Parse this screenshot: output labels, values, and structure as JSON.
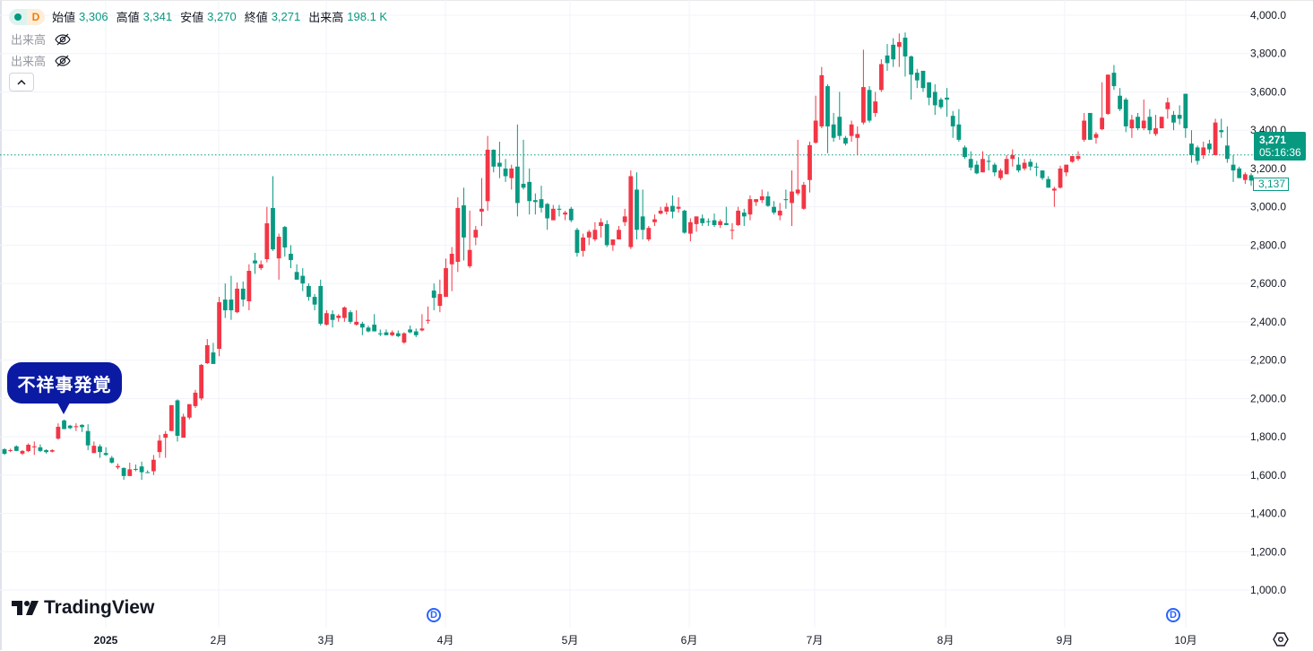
{
  "legend": {
    "interval": "D",
    "open_label": "始値",
    "open": "3,306",
    "high_label": "高値",
    "high": "3,341",
    "low_label": "安値",
    "low": "3,270",
    "close_label": "終値",
    "close": "3,271",
    "volume_label": "出来高",
    "volume": "198.1 K"
  },
  "indicators": [
    {
      "label": "出来高",
      "icon": "eye-off-icon"
    },
    {
      "label": "出来高",
      "icon": "eye-off-icon"
    }
  ],
  "collapse_icon": "chevron-up-icon",
  "annotation": {
    "text": "不祥事発覚"
  },
  "price_line": {
    "price": "3,271",
    "countdown": "05:16:36",
    "current": "3,137"
  },
  "logo": {
    "text": "TradingView"
  },
  "dividend_markers": [
    "D",
    "D"
  ],
  "colors": {
    "up": "#f23645",
    "down": "#089981",
    "grid": "#f0f3fa",
    "callout": "#0a1aa3",
    "marker": "#2962ff"
  },
  "chart_data": {
    "type": "candlestick",
    "title": "",
    "ylim": [
      1000,
      4000
    ],
    "y_ticks": [
      "4,000.0",
      "3,800.0",
      "3,600.0",
      "3,400.0",
      "3,200.0",
      "3,000.0",
      "2,800.0",
      "2,600.0",
      "2,400.0",
      "2,200.0",
      "2,000.0",
      "1,800.0",
      "1,600.0",
      "1,400.0",
      "1,200.0",
      "1,000.0"
    ],
    "x_ticks": [
      "2025",
      "2月",
      "3月",
      "4月",
      "5月",
      "6月",
      "7月",
      "8月",
      "9月",
      "10月"
    ],
    "reference_line": 3271,
    "ohlc_order": [
      "open",
      "high",
      "low",
      "close"
    ],
    "candles": [
      [
        1735,
        1740,
        1705,
        1711
      ],
      [
        1728,
        1738,
        1720,
        1730
      ],
      [
        1750,
        1755,
        1725,
        1726
      ],
      [
        1712,
        1730,
        1705,
        1726
      ],
      [
        1725,
        1765,
        1720,
        1758
      ],
      [
        1745,
        1775,
        1705,
        1750
      ],
      [
        1745,
        1760,
        1720,
        1726
      ],
      [
        1730,
        1735,
        1712,
        1720
      ],
      [
        1722,
        1735,
        1718,
        1730
      ],
      [
        1790,
        1870,
        1785,
        1852
      ],
      [
        1885,
        1890,
        1840,
        1840
      ],
      [
        1858,
        1862,
        1840,
        1845
      ],
      [
        1850,
        1870,
        1830,
        1855
      ],
      [
        1862,
        1865,
        1825,
        1850
      ],
      [
        1830,
        1865,
        1730,
        1755
      ],
      [
        1715,
        1775,
        1715,
        1753
      ],
      [
        1750,
        1760,
        1690,
        1720
      ],
      [
        1715,
        1745,
        1700,
        1705
      ],
      [
        1690,
        1700,
        1660,
        1665
      ],
      [
        1640,
        1660,
        1630,
        1647
      ],
      [
        1637,
        1640,
        1575,
        1595
      ],
      [
        1595,
        1665,
        1595,
        1630
      ],
      [
        1632,
        1655,
        1620,
        1630
      ],
      [
        1645,
        1670,
        1575,
        1615
      ],
      [
        1615,
        1625,
        1612,
        1612
      ],
      [
        1620,
        1705,
        1600,
        1680
      ],
      [
        1720,
        1810,
        1690,
        1780
      ],
      [
        1795,
        1830,
        1690,
        1815
      ],
      [
        1830,
        1965,
        1830,
        1965
      ],
      [
        1990,
        1995,
        1775,
        1805
      ],
      [
        1795,
        1920,
        1795,
        1905
      ],
      [
        1900,
        1970,
        1890,
        1970
      ],
      [
        1960,
        2045,
        1950,
        2030
      ],
      [
        2000,
        2180,
        1990,
        2175
      ],
      [
        2184,
        2310,
        2180,
        2278
      ],
      [
        2240,
        2290,
        2180,
        2180
      ],
      [
        2259,
        2530,
        2220,
        2502
      ],
      [
        2516,
        2600,
        2420,
        2460
      ],
      [
        2516,
        2640,
        2410,
        2460
      ],
      [
        2450,
        2605,
        2445,
        2573
      ],
      [
        2573,
        2610,
        2480,
        2516
      ],
      [
        2507,
        2700,
        2460,
        2666
      ],
      [
        2720,
        2760,
        2650,
        2705
      ],
      [
        2680,
        2720,
        2670,
        2700
      ],
      [
        2727,
        3000,
        2710,
        2914
      ],
      [
        2994,
        3160,
        2770,
        2778
      ],
      [
        2731,
        2860,
        2620,
        2844
      ],
      [
        2895,
        2900,
        2740,
        2788
      ],
      [
        2755,
        2800,
        2680,
        2722
      ],
      [
        2660,
        2700,
        2620,
        2620
      ],
      [
        2640,
        2680,
        2560,
        2600
      ],
      [
        2587,
        2600,
        2510,
        2530
      ],
      [
        2530,
        2545,
        2460,
        2490
      ],
      [
        2587,
        2620,
        2380,
        2390
      ],
      [
        2385,
        2460,
        2380,
        2445
      ],
      [
        2440,
        2460,
        2370,
        2410
      ],
      [
        2420,
        2440,
        2400,
        2432
      ],
      [
        2420,
        2480,
        2400,
        2475
      ],
      [
        2450,
        2460,
        2390,
        2400
      ],
      [
        2385,
        2460,
        2380,
        2400
      ],
      [
        2390,
        2400,
        2330,
        2370
      ],
      [
        2370,
        2380,
        2345,
        2350
      ],
      [
        2385,
        2440,
        2350,
        2350
      ],
      [
        2340,
        2360,
        2325,
        2335
      ],
      [
        2345,
        2360,
        2330,
        2330
      ],
      [
        2330,
        2355,
        2325,
        2345
      ],
      [
        2340,
        2355,
        2320,
        2325
      ],
      [
        2292,
        2345,
        2285,
        2340
      ],
      [
        2360,
        2380,
        2340,
        2345
      ],
      [
        2350,
        2365,
        2320,
        2330
      ],
      [
        2355,
        2440,
        2350,
        2365
      ],
      [
        2405,
        2480,
        2390,
        2410
      ],
      [
        2563,
        2600,
        2460,
        2525
      ],
      [
        2483,
        2620,
        2450,
        2545
      ],
      [
        2530,
        2730,
        2530,
        2680
      ],
      [
        2700,
        2790,
        2560,
        2755
      ],
      [
        2713,
        3050,
        2660,
        2994
      ],
      [
        3008,
        3100,
        2720,
        2840
      ],
      [
        2690,
        2980,
        2680,
        2775
      ],
      [
        2840,
        2900,
        2800,
        2880
      ],
      [
        2975,
        3150,
        2900,
        2990
      ],
      [
        3030,
        3370,
        2980,
        3298
      ],
      [
        3298,
        3300,
        3180,
        3210
      ],
      [
        3230,
        3340,
        3150,
        3210
      ],
      [
        3200,
        3250,
        3130,
        3160
      ],
      [
        3150,
        3220,
        3090,
        3200
      ],
      [
        3210,
        3430,
        2950,
        3020
      ],
      [
        3120,
        3350,
        3090,
        3100
      ],
      [
        3130,
        3200,
        2960,
        3030
      ],
      [
        3035,
        3070,
        2960,
        3025
      ],
      [
        3040,
        3110,
        2970,
        2995
      ],
      [
        3015,
        3020,
        2880,
        2940
      ],
      [
        2930,
        3010,
        2930,
        2990
      ],
      [
        2990,
        3010,
        2950,
        2985
      ],
      [
        2960,
        2980,
        2930,
        2970
      ],
      [
        2990,
        3000,
        2920,
        2930
      ],
      [
        2880,
        2890,
        2740,
        2760
      ],
      [
        2770,
        2860,
        2740,
        2840
      ],
      [
        2840,
        2880,
        2800,
        2870
      ],
      [
        2830,
        2920,
        2820,
        2880
      ],
      [
        2900,
        2940,
        2840,
        2920
      ],
      [
        2910,
        2930,
        2790,
        2800
      ],
      [
        2800,
        2830,
        2770,
        2830
      ],
      [
        2830,
        2900,
        2830,
        2880
      ],
      [
        2920,
        2990,
        2900,
        2950
      ],
      [
        2790,
        3190,
        2780,
        3160
      ],
      [
        3090,
        3180,
        2830,
        2880
      ],
      [
        2950,
        3090,
        2830,
        2880
      ],
      [
        2830,
        2900,
        2820,
        2890
      ],
      [
        2920,
        2960,
        2900,
        2935
      ],
      [
        2965,
        3000,
        2960,
        2980
      ],
      [
        2975,
        3020,
        2960,
        3000
      ],
      [
        3005,
        3060,
        2940,
        2975
      ],
      [
        2990,
        3050,
        2970,
        3000
      ],
      [
        2980,
        2985,
        2860,
        2865
      ],
      [
        2860,
        2940,
        2820,
        2920
      ],
      [
        2910,
        2950,
        2870,
        2950
      ],
      [
        2940,
        2960,
        2900,
        2915
      ],
      [
        2925,
        2940,
        2900,
        2922
      ],
      [
        2930,
        2965,
        2895,
        2905
      ],
      [
        2905,
        2935,
        2890,
        2925
      ],
      [
        2915,
        3000,
        2910,
        2905
      ],
      [
        2880,
        2915,
        2830,
        2880
      ],
      [
        2905,
        3000,
        2900,
        2980
      ],
      [
        2970,
        2990,
        2900,
        2950
      ],
      [
        2960,
        3060,
        2930,
        3040
      ],
      [
        3025,
        3040,
        3005,
        3040
      ],
      [
        3035,
        3090,
        3020,
        3055
      ],
      [
        3055,
        3080,
        3000,
        3005
      ],
      [
        3000,
        3030,
        2960,
        2970
      ],
      [
        2955,
        3020,
        2930,
        2980
      ],
      [
        3040,
        3090,
        2990,
        3035
      ],
      [
        3020,
        3190,
        2900,
        3080
      ],
      [
        3070,
        3350,
        3060,
        3090
      ],
      [
        2990,
        3130,
        2985,
        3115
      ],
      [
        3140,
        3340,
        3075,
        3322
      ],
      [
        3335,
        3580,
        3330,
        3450
      ],
      [
        3420,
        3730,
        3410,
        3687
      ],
      [
        3630,
        3640,
        3280,
        3420
      ],
      [
        3430,
        3490,
        3340,
        3360
      ],
      [
        3470,
        3600,
        3350,
        3370
      ],
      [
        3360,
        3370,
        3320,
        3330
      ],
      [
        3370,
        3450,
        3340,
        3430
      ],
      [
        3360,
        3420,
        3270,
        3380
      ],
      [
        3440,
        3820,
        3430,
        3625
      ],
      [
        3610,
        3630,
        3440,
        3450
      ],
      [
        3490,
        3600,
        3470,
        3550
      ],
      [
        3610,
        3770,
        3600,
        3745
      ],
      [
        3790,
        3850,
        3710,
        3750
      ],
      [
        3846,
        3880,
        3730,
        3770
      ],
      [
        3835,
        3905,
        3730,
        3860
      ],
      [
        3883,
        3910,
        3680,
        3785
      ],
      [
        3785,
        3790,
        3560,
        3690
      ],
      [
        3700,
        3720,
        3620,
        3660
      ],
      [
        3710,
        3710,
        3600,
        3620
      ],
      [
        3650,
        3650,
        3530,
        3570
      ],
      [
        3600,
        3640,
        3480,
        3530
      ],
      [
        3560,
        3570,
        3510,
        3520
      ],
      [
        3570,
        3620,
        3470,
        3560
      ],
      [
        3475,
        3500,
        3360,
        3420
      ],
      [
        3430,
        3510,
        3340,
        3350
      ],
      [
        3310,
        3320,
        3250,
        3260
      ],
      [
        3250,
        3290,
        3190,
        3205
      ],
      [
        3220,
        3240,
        3170,
        3175
      ],
      [
        3180,
        3290,
        3180,
        3250
      ],
      [
        3240,
        3270,
        3190,
        3235
      ],
      [
        3220,
        3230,
        3160,
        3180
      ],
      [
        3150,
        3200,
        3140,
        3190
      ],
      [
        3170,
        3270,
        3170,
        3250
      ],
      [
        3250,
        3300,
        3210,
        3270
      ],
      [
        3220,
        3260,
        3180,
        3190
      ],
      [
        3200,
        3250,
        3190,
        3230
      ],
      [
        3235,
        3250,
        3190,
        3210
      ],
      [
        3210,
        3230,
        3160,
        3205
      ],
      [
        3190,
        3190,
        3140,
        3150
      ],
      [
        3145,
        3160,
        3100,
        3100
      ],
      [
        3085,
        3105,
        3000,
        3095
      ],
      [
        3100,
        3215,
        3095,
        3200
      ],
      [
        3180,
        3220,
        3160,
        3220
      ],
      [
        3235,
        3265,
        3230,
        3265
      ],
      [
        3250,
        3290,
        3240,
        3265
      ],
      [
        3350,
        3490,
        3340,
        3450
      ],
      [
        3490,
        3490,
        3350,
        3350
      ],
      [
        3360,
        3390,
        3330,
        3380
      ],
      [
        3405,
        3650,
        3400,
        3465
      ],
      [
        3485,
        3690,
        3480,
        3690
      ],
      [
        3700,
        3740,
        3610,
        3630
      ],
      [
        3580,
        3620,
        3500,
        3510
      ],
      [
        3560,
        3570,
        3390,
        3420
      ],
      [
        3410,
        3480,
        3360,
        3455
      ],
      [
        3470,
        3490,
        3400,
        3410
      ],
      [
        3410,
        3560,
        3400,
        3450
      ],
      [
        3470,
        3510,
        3380,
        3400
      ],
      [
        3380,
        3480,
        3370,
        3410
      ],
      [
        3410,
        3470,
        3410,
        3470
      ],
      [
        3510,
        3570,
        3460,
        3545
      ],
      [
        3480,
        3500,
        3400,
        3440
      ],
      [
        3480,
        3530,
        3430,
        3460
      ],
      [
        3590,
        3590,
        3360,
        3410
      ],
      [
        3330,
        3400,
        3230,
        3270
      ],
      [
        3310,
        3320,
        3220,
        3240
      ],
      [
        3270,
        3340,
        3250,
        3310
      ],
      [
        3330,
        3350,
        3280,
        3300
      ],
      [
        3270,
        3460,
        3270,
        3440
      ],
      [
        3400,
        3460,
        3360,
        3390
      ],
      [
        3320,
        3420,
        3230,
        3250
      ],
      [
        3220,
        3270,
        3130,
        3190
      ],
      [
        3200,
        3210,
        3150,
        3150
      ],
      [
        3140,
        3180,
        3120,
        3170
      ],
      [
        3165,
        3175,
        3110,
        3137
      ]
    ]
  }
}
